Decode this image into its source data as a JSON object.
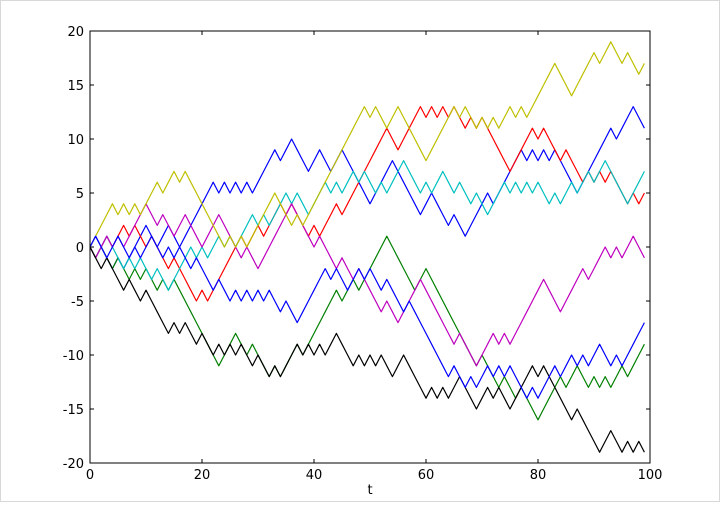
{
  "chart_data": {
    "type": "line",
    "xlabel": "t",
    "x": [
      0,
      1,
      2,
      3,
      4,
      5,
      6,
      7,
      8,
      9,
      10,
      11,
      12,
      13,
      14,
      15,
      16,
      17,
      18,
      19,
      20,
      21,
      22,
      23,
      24,
      25,
      26,
      27,
      28,
      29,
      30,
      31,
      32,
      33,
      34,
      35,
      36,
      37,
      38,
      39,
      40,
      41,
      42,
      43,
      44,
      45,
      46,
      47,
      48,
      49,
      50,
      51,
      52,
      53,
      54,
      55,
      56,
      57,
      58,
      59,
      60,
      61,
      62,
      63,
      64,
      65,
      66,
      67,
      68,
      69,
      70,
      71,
      72,
      73,
      74,
      75,
      76,
      77,
      78,
      79,
      80,
      81,
      82,
      83,
      84,
      85,
      86,
      87,
      88,
      89,
      90,
      91,
      92,
      93,
      94,
      95,
      96,
      97,
      98,
      99
    ],
    "series": [
      {
        "color": "#0000ff",
        "values": [
          0,
          1,
          0,
          -1,
          -2,
          -1,
          -2,
          -1,
          0,
          1,
          2,
          1,
          0,
          1,
          2,
          1,
          0,
          1,
          2,
          3,
          4,
          5,
          6,
          5,
          6,
          5,
          6,
          5,
          6,
          5,
          6,
          7,
          8,
          9,
          8,
          9,
          10,
          9,
          8,
          7,
          8,
          9,
          8,
          7,
          8,
          9,
          8,
          7,
          6,
          5,
          4,
          5,
          6,
          7,
          8,
          7,
          6,
          5,
          4,
          3,
          4,
          5,
          4,
          3,
          2,
          3,
          2,
          1,
          2,
          3,
          4,
          5,
          4,
          5,
          6,
          7,
          8,
          9,
          8,
          9,
          8,
          9,
          8,
          9,
          8,
          7,
          6,
          5,
          6,
          7,
          8,
          9,
          10,
          11,
          10,
          11,
          12,
          13,
          12,
          11
        ]
      },
      {
        "color": "#008000",
        "values": [
          0,
          -1,
          0,
          -1,
          -2,
          -1,
          -2,
          -3,
          -2,
          -3,
          -2,
          -3,
          -4,
          -3,
          -4,
          -3,
          -4,
          -5,
          -6,
          -7,
          -8,
          -9,
          -10,
          -11,
          -10,
          -9,
          -8,
          -9,
          -10,
          -9,
          -10,
          -11,
          -12,
          -11,
          -12,
          -11,
          -10,
          -9,
          -10,
          -9,
          -8,
          -7,
          -6,
          -5,
          -4,
          -5,
          -4,
          -3,
          -4,
          -3,
          -2,
          -1,
          0,
          1,
          0,
          -1,
          -2,
          -3,
          -4,
          -3,
          -2,
          -3,
          -4,
          -5,
          -6,
          -7,
          -8,
          -9,
          -10,
          -11,
          -10,
          -11,
          -12,
          -13,
          -12,
          -13,
          -14,
          -13,
          -14,
          -15,
          -16,
          -15,
          -14,
          -13,
          -12,
          -13,
          -12,
          -11,
          -12,
          -13,
          -12,
          -13,
          -12,
          -13,
          -12,
          -11,
          -12,
          -11,
          -10,
          -9
        ]
      },
      {
        "color": "#ff0000",
        "values": [
          0,
          -1,
          0,
          1,
          0,
          1,
          2,
          1,
          2,
          1,
          0,
          1,
          0,
          -1,
          -2,
          -1,
          -2,
          -3,
          -4,
          -5,
          -4,
          -5,
          -4,
          -3,
          -2,
          -1,
          0,
          1,
          0,
          1,
          2,
          1,
          2,
          3,
          4,
          3,
          4,
          3,
          2,
          1,
          2,
          1,
          2,
          3,
          4,
          3,
          4,
          5,
          6,
          7,
          8,
          9,
          10,
          11,
          10,
          9,
          10,
          11,
          12,
          13,
          12,
          13,
          12,
          13,
          12,
          13,
          12,
          11,
          12,
          11,
          12,
          11,
          10,
          9,
          8,
          7,
          8,
          9,
          10,
          11,
          10,
          11,
          10,
          9,
          8,
          9,
          8,
          7,
          6,
          7,
          6,
          7,
          6,
          7,
          6,
          5,
          4,
          5,
          4,
          5
        ]
      },
      {
        "color": "#00bfbf",
        "values": [
          0,
          -1,
          0,
          1,
          0,
          -1,
          -2,
          -1,
          -2,
          -1,
          -2,
          -3,
          -2,
          -3,
          -4,
          -3,
          -2,
          -1,
          0,
          -1,
          0,
          -1,
          0,
          1,
          0,
          1,
          0,
          1,
          2,
          3,
          2,
          3,
          2,
          3,
          4,
          5,
          4,
          5,
          4,
          3,
          4,
          5,
          6,
          5,
          6,
          5,
          6,
          7,
          6,
          7,
          6,
          5,
          6,
          5,
          6,
          7,
          8,
          7,
          6,
          5,
          6,
          5,
          6,
          7,
          6,
          5,
          6,
          5,
          4,
          5,
          4,
          3,
          4,
          5,
          6,
          5,
          6,
          5,
          6,
          5,
          6,
          5,
          4,
          5,
          4,
          5,
          6,
          5,
          6,
          7,
          6,
          7,
          8,
          7,
          6,
          5,
          4,
          5,
          6,
          7
        ]
      },
      {
        "color": "#bf00bf",
        "values": [
          0,
          -1,
          0,
          1,
          0,
          1,
          0,
          1,
          2,
          3,
          4,
          3,
          2,
          3,
          2,
          1,
          2,
          3,
          2,
          1,
          0,
          1,
          2,
          3,
          2,
          1,
          0,
          -1,
          0,
          -1,
          -2,
          -1,
          0,
          1,
          2,
          3,
          4,
          3,
          2,
          1,
          0,
          1,
          0,
          -1,
          -2,
          -1,
          -2,
          -3,
          -2,
          -3,
          -4,
          -5,
          -6,
          -5,
          -6,
          -7,
          -6,
          -5,
          -4,
          -3,
          -4,
          -5,
          -6,
          -7,
          -8,
          -9,
          -8,
          -9,
          -10,
          -11,
          -10,
          -9,
          -8,
          -9,
          -8,
          -9,
          -8,
          -7,
          -6,
          -5,
          -4,
          -3,
          -4,
          -5,
          -6,
          -5,
          -4,
          -3,
          -2,
          -3,
          -2,
          -1,
          0,
          -1,
          0,
          -1,
          0,
          1,
          0,
          -1
        ]
      },
      {
        "color": "#bfbf00",
        "values": [
          0,
          1,
          2,
          3,
          4,
          3,
          4,
          3,
          4,
          3,
          4,
          5,
          6,
          5,
          6,
          7,
          6,
          7,
          6,
          5,
          4,
          3,
          2,
          1,
          0,
          1,
          0,
          1,
          0,
          1,
          2,
          3,
          4,
          5,
          4,
          3,
          2,
          3,
          2,
          3,
          4,
          5,
          6,
          7,
          8,
          9,
          10,
          11,
          12,
          13,
          12,
          13,
          12,
          11,
          12,
          13,
          12,
          11,
          10,
          9,
          8,
          9,
          10,
          11,
          12,
          13,
          12,
          13,
          12,
          11,
          12,
          11,
          12,
          11,
          12,
          13,
          12,
          13,
          12,
          13,
          14,
          15,
          16,
          17,
          16,
          15,
          14,
          15,
          16,
          17,
          18,
          17,
          18,
          19,
          18,
          17,
          18,
          17,
          16,
          17
        ]
      },
      {
        "color": "#000000",
        "values": [
          0,
          -1,
          -2,
          -1,
          -2,
          -3,
          -4,
          -3,
          -4,
          -5,
          -4,
          -5,
          -6,
          -7,
          -8,
          -7,
          -8,
          -7,
          -8,
          -9,
          -8,
          -9,
          -10,
          -9,
          -10,
          -9,
          -10,
          -9,
          -10,
          -11,
          -10,
          -11,
          -12,
          -11,
          -12,
          -11,
          -10,
          -9,
          -10,
          -9,
          -10,
          -9,
          -10,
          -9,
          -8,
          -9,
          -10,
          -11,
          -10,
          -11,
          -10,
          -11,
          -10,
          -11,
          -12,
          -11,
          -10,
          -11,
          -12,
          -13,
          -14,
          -13,
          -14,
          -13,
          -14,
          -13,
          -12,
          -13,
          -14,
          -15,
          -14,
          -13,
          -14,
          -13,
          -14,
          -15,
          -14,
          -13,
          -12,
          -11,
          -12,
          -11,
          -12,
          -13,
          -14,
          -15,
          -16,
          -15,
          -16,
          -17,
          -18,
          -19,
          -18,
          -17,
          -18,
          -19,
          -18,
          -19,
          -18,
          -19
        ]
      },
      {
        "color": "#0000ff",
        "values": [
          0,
          1,
          0,
          -1,
          0,
          1,
          0,
          -1,
          0,
          -1,
          0,
          1,
          0,
          -1,
          0,
          -1,
          0,
          -1,
          -2,
          -1,
          -2,
          -3,
          -4,
          -3,
          -4,
          -5,
          -4,
          -5,
          -4,
          -5,
          -4,
          -5,
          -4,
          -5,
          -6,
          -5,
          -6,
          -7,
          -6,
          -5,
          -4,
          -3,
          -2,
          -3,
          -2,
          -3,
          -4,
          -3,
          -2,
          -3,
          -2,
          -3,
          -4,
          -3,
          -4,
          -5,
          -6,
          -5,
          -6,
          -7,
          -8,
          -9,
          -10,
          -11,
          -12,
          -11,
          -12,
          -13,
          -12,
          -13,
          -12,
          -11,
          -12,
          -11,
          -12,
          -11,
          -12,
          -13,
          -14,
          -13,
          -14,
          -13,
          -12,
          -11,
          -12,
          -11,
          -10,
          -11,
          -10,
          -11,
          -10,
          -9,
          -10,
          -11,
          -10,
          -11,
          -10,
          -9,
          -8,
          -7
        ]
      }
    ],
    "xlim": [
      0,
      100
    ],
    "xticks": [
      0,
      20,
      40,
      60,
      80,
      100
    ],
    "ylim": [
      -20,
      20
    ],
    "yticks": [
      -20,
      -15,
      -10,
      -5,
      0,
      5,
      10,
      15,
      20
    ],
    "grid": false
  }
}
